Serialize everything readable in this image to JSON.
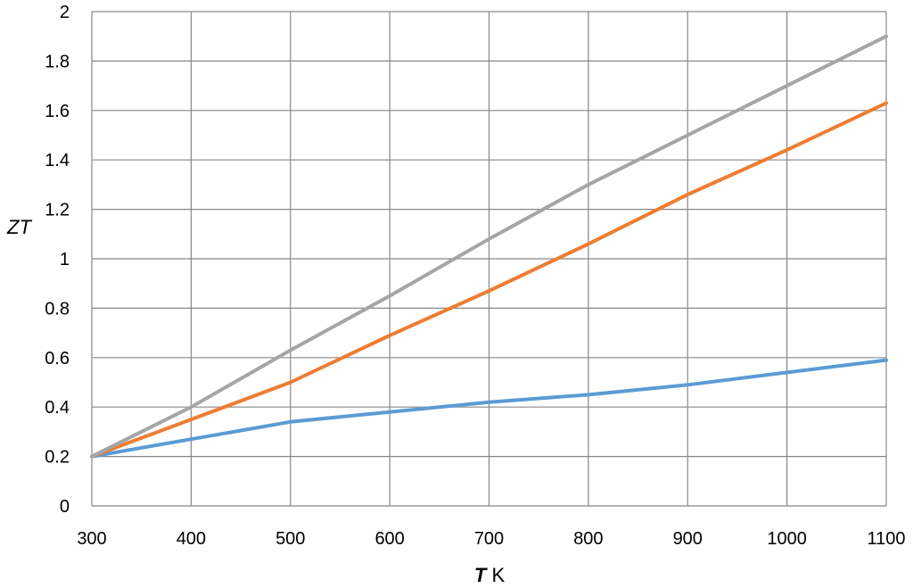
{
  "chart_data": {
    "type": "line",
    "xlabel_var": "T",
    "xlabel_unit": " K",
    "ylabel": "ZT",
    "xlim": [
      300,
      1100
    ],
    "ylim": [
      0,
      2
    ],
    "x_ticks": [
      300,
      400,
      500,
      600,
      700,
      800,
      900,
      1000,
      1100
    ],
    "y_ticks": [
      0,
      0.2,
      0.4,
      0.6,
      0.8,
      1,
      1.2,
      1.4,
      1.6,
      1.8,
      2
    ],
    "y_tick_labels": [
      "0",
      "0.2",
      "0.4",
      "0.6",
      "0.8",
      "1",
      "1.2",
      "1.4",
      "1.6",
      "1.8",
      "2"
    ],
    "grid": true,
    "legend": "none",
    "series": [
      {
        "color": "#5b9bd5",
        "x": [
          300,
          400,
          500,
          600,
          700,
          800,
          900,
          1000,
          1100
        ],
        "y": [
          0.2,
          0.27,
          0.34,
          0.38,
          0.42,
          0.45,
          0.49,
          0.54,
          0.59
        ]
      },
      {
        "color": "#ed7d31",
        "x": [
          300,
          400,
          500,
          600,
          700,
          800,
          900,
          1000,
          1100
        ],
        "y": [
          0.2,
          0.35,
          0.5,
          0.69,
          0.87,
          1.06,
          1.26,
          1.44,
          1.63
        ]
      },
      {
        "color": "#a5a5a5",
        "x": [
          300,
          400,
          500,
          600,
          700,
          800,
          900,
          1000,
          1100
        ],
        "y": [
          0.2,
          0.4,
          0.63,
          0.85,
          1.08,
          1.3,
          1.5,
          1.7,
          1.9
        ]
      }
    ]
  }
}
